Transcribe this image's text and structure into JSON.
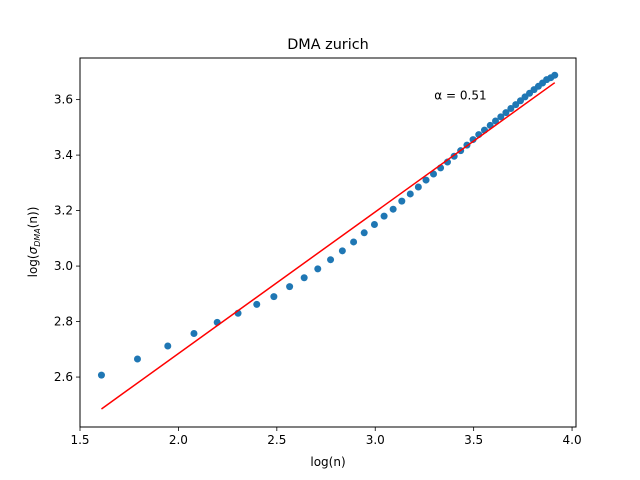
{
  "chart_data": {
    "type": "scatter",
    "title": "DMA zurich",
    "xlabel": "log(n)",
    "ylabel": {
      "prefix": "log(",
      "sigma": "σ",
      "subscript": "DMA",
      "suffix": "(n))"
    },
    "xlim": [
      1.5,
      4.02
    ],
    "ylim": [
      2.42,
      3.75
    ],
    "xticks": [
      "1.5",
      "2.0",
      "2.5",
      "3.0",
      "3.5",
      "4.0"
    ],
    "xtick_values": [
      1.5,
      2.0,
      2.5,
      3.0,
      3.5,
      4.0
    ],
    "yticks": [
      "2.6",
      "2.8",
      "3.0",
      "3.2",
      "3.4",
      "3.6"
    ],
    "ytick_values": [
      2.6,
      2.8,
      3.0,
      3.2,
      3.4,
      3.6
    ],
    "grid": false,
    "series": [
      {
        "kind": "points",
        "color": "#1f77b4",
        "x": [
          1.609,
          1.792,
          1.946,
          2.079,
          2.197,
          2.303,
          2.398,
          2.485,
          2.565,
          2.639,
          2.708,
          2.773,
          2.833,
          2.89,
          2.944,
          2.996,
          3.045,
          3.091,
          3.135,
          3.178,
          3.219,
          3.258,
          3.296,
          3.332,
          3.367,
          3.401,
          3.434,
          3.466,
          3.497,
          3.526,
          3.555,
          3.584,
          3.611,
          3.638,
          3.664,
          3.689,
          3.714,
          3.738,
          3.761,
          3.784,
          3.807,
          3.829,
          3.85,
          3.871,
          3.892,
          3.912
        ],
        "y": [
          2.607,
          2.665,
          2.712,
          2.757,
          2.797,
          2.83,
          2.862,
          2.89,
          2.926,
          2.958,
          2.99,
          3.023,
          3.055,
          3.087,
          3.12,
          3.15,
          3.18,
          3.205,
          3.234,
          3.26,
          3.285,
          3.31,
          3.332,
          3.354,
          3.375,
          3.396,
          3.416,
          3.436,
          3.456,
          3.474,
          3.49,
          3.507,
          3.523,
          3.538,
          3.553,
          3.568,
          3.582,
          3.596,
          3.61,
          3.623,
          3.636,
          3.648,
          3.66,
          3.672,
          3.679,
          3.688
        ]
      },
      {
        "kind": "fit_line",
        "color": "#ff0000",
        "x": [
          1.609,
          3.912
        ],
        "y": [
          2.485,
          3.661
        ]
      }
    ],
    "annotations": [
      {
        "text": "α = 0.51",
        "x": 3.3,
        "y": 3.6
      }
    ]
  }
}
